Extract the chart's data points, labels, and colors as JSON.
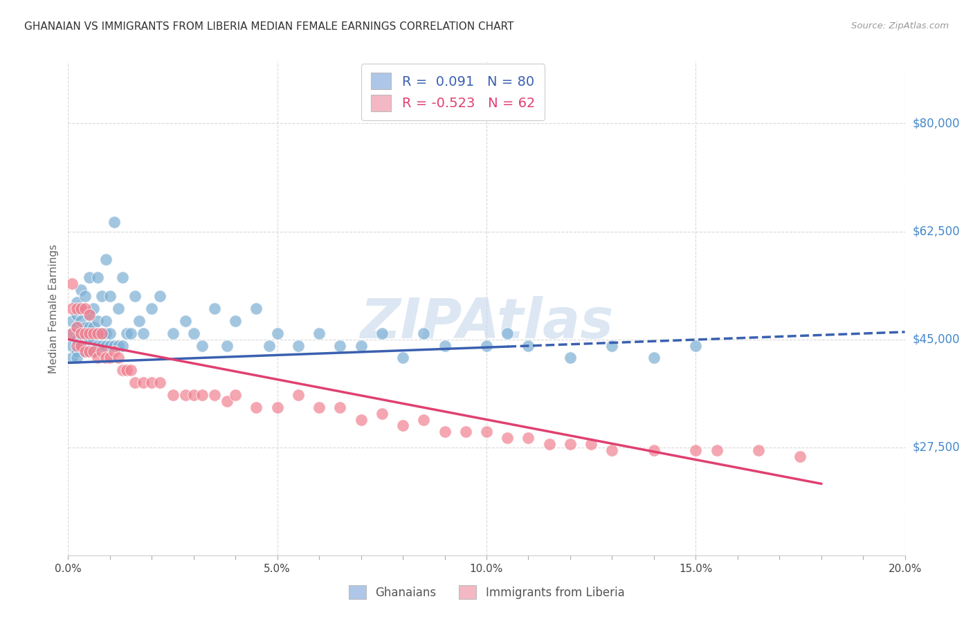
{
  "title": "GHANAIAN VS IMMIGRANTS FROM LIBERIA MEDIAN FEMALE EARNINGS CORRELATION CHART",
  "source": "Source: ZipAtlas.com",
  "ylabel": "Median Female Earnings",
  "xlim": [
    0.0,
    0.2
  ],
  "ylim": [
    10000,
    90000
  ],
  "yticks": [
    27500,
    45000,
    62500,
    80000
  ],
  "ytick_labels": [
    "$27,500",
    "$45,000",
    "$62,500",
    "$80,000"
  ],
  "r_blue": 0.091,
  "n_blue": 80,
  "r_pink": -0.523,
  "n_pink": 62,
  "blue_scatter_color": "#7bafd4",
  "pink_scatter_color": "#f08090",
  "blue_scatter_edge": "white",
  "pink_scatter_edge": "white",
  "blue_line_color": "#3a60b0",
  "pink_line_color": "#e04070",
  "legend_blue_fill": "#aec6e8",
  "legend_pink_fill": "#f4b8c4",
  "background_color": "#ffffff",
  "grid_color": "#d8d8d8",
  "title_fontsize": 11,
  "watermark": "ZIPAtlas",
  "watermark_color": "#c5d8ec",
  "source_color": "#999999",
  "ytick_color": "#4488cc",
  "xtick_color": "#444444",
  "blue_points_x": [
    0.001,
    0.001,
    0.001,
    0.001,
    0.002,
    0.002,
    0.002,
    0.002,
    0.002,
    0.002,
    0.003,
    0.003,
    0.003,
    0.003,
    0.003,
    0.004,
    0.004,
    0.004,
    0.004,
    0.005,
    0.005,
    0.005,
    0.005,
    0.005,
    0.006,
    0.006,
    0.006,
    0.006,
    0.007,
    0.007,
    0.007,
    0.007,
    0.008,
    0.008,
    0.008,
    0.009,
    0.009,
    0.009,
    0.009,
    0.01,
    0.01,
    0.01,
    0.011,
    0.011,
    0.012,
    0.012,
    0.013,
    0.013,
    0.014,
    0.015,
    0.016,
    0.017,
    0.018,
    0.02,
    0.022,
    0.025,
    0.028,
    0.03,
    0.032,
    0.035,
    0.038,
    0.04,
    0.045,
    0.048,
    0.05,
    0.055,
    0.06,
    0.065,
    0.07,
    0.075,
    0.08,
    0.085,
    0.09,
    0.1,
    0.105,
    0.11,
    0.12,
    0.13,
    0.14,
    0.15
  ],
  "blue_points_y": [
    42000,
    44000,
    46000,
    48000,
    43000,
    45000,
    47000,
    49000,
    51000,
    42000,
    44000,
    46000,
    48000,
    50000,
    53000,
    43000,
    45000,
    47000,
    52000,
    43000,
    45000,
    47000,
    49000,
    55000,
    43000,
    45000,
    47000,
    50000,
    44000,
    46000,
    48000,
    55000,
    44000,
    46000,
    52000,
    44000,
    46000,
    48000,
    58000,
    44000,
    46000,
    52000,
    44000,
    64000,
    44000,
    50000,
    44000,
    55000,
    46000,
    46000,
    52000,
    48000,
    46000,
    50000,
    52000,
    46000,
    48000,
    46000,
    44000,
    50000,
    44000,
    48000,
    50000,
    44000,
    46000,
    44000,
    46000,
    44000,
    44000,
    46000,
    42000,
    46000,
    44000,
    44000,
    46000,
    44000,
    42000,
    44000,
    42000,
    44000
  ],
  "pink_points_x": [
    0.001,
    0.001,
    0.001,
    0.002,
    0.002,
    0.002,
    0.003,
    0.003,
    0.003,
    0.004,
    0.004,
    0.004,
    0.005,
    0.005,
    0.005,
    0.006,
    0.006,
    0.007,
    0.007,
    0.008,
    0.008,
    0.009,
    0.01,
    0.011,
    0.012,
    0.013,
    0.014,
    0.015,
    0.016,
    0.018,
    0.02,
    0.022,
    0.025,
    0.028,
    0.03,
    0.032,
    0.035,
    0.038,
    0.04,
    0.045,
    0.05,
    0.055,
    0.06,
    0.065,
    0.07,
    0.075,
    0.08,
    0.085,
    0.09,
    0.095,
    0.1,
    0.105,
    0.11,
    0.115,
    0.12,
    0.125,
    0.13,
    0.14,
    0.15,
    0.155,
    0.165,
    0.175
  ],
  "pink_points_y": [
    46000,
    50000,
    54000,
    44000,
    47000,
    50000,
    44000,
    46000,
    50000,
    43000,
    46000,
    50000,
    43000,
    46000,
    49000,
    43000,
    46000,
    42000,
    46000,
    43000,
    46000,
    42000,
    42000,
    43000,
    42000,
    40000,
    40000,
    40000,
    38000,
    38000,
    38000,
    38000,
    36000,
    36000,
    36000,
    36000,
    36000,
    35000,
    36000,
    34000,
    34000,
    36000,
    34000,
    34000,
    32000,
    33000,
    31000,
    32000,
    30000,
    30000,
    30000,
    29000,
    29000,
    28000,
    28000,
    28000,
    27000,
    27000,
    27000,
    27000,
    27000,
    26000
  ],
  "blue_line_intercept": 41200,
  "blue_line_slope": 25000,
  "pink_line_intercept": 45000,
  "pink_line_slope": -130000
}
